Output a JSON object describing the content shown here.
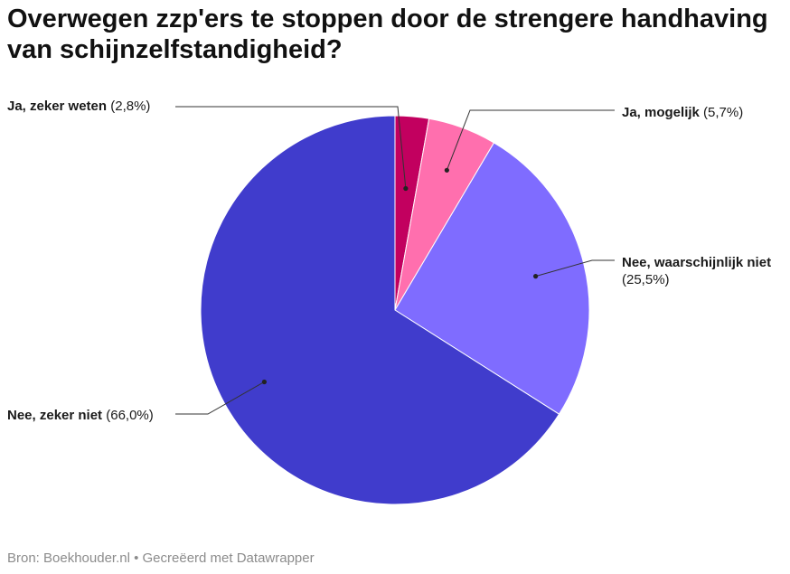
{
  "title": "Overwegen zzp'ers te stoppen door de strengere handhaving van schijnzelfstandigheid?",
  "chart_data": {
    "type": "pie",
    "title": "Overwegen zzp'ers te stoppen door de strengere handhaving van schijnzelfstandigheid?",
    "slices": [
      {
        "name": "Ja, zeker weten",
        "value": 2.8,
        "value_label": "(2,8%)",
        "color": "#c2005f"
      },
      {
        "name": "Ja, mogelijk",
        "value": 5.7,
        "value_label": "(5,7%)",
        "color": "#ff6fae"
      },
      {
        "name": "Nee, waarschijnlijk niet",
        "value": 25.5,
        "value_label": "(25,5%)",
        "color": "#7f6cff"
      },
      {
        "name": "Nee, zeker niet",
        "value": 66.0,
        "value_label": "(66,0%)",
        "color": "#403ccc"
      }
    ]
  },
  "footer": {
    "source": "Bron: Boekhouder.nl • Gecreëerd met Datawrapper"
  }
}
